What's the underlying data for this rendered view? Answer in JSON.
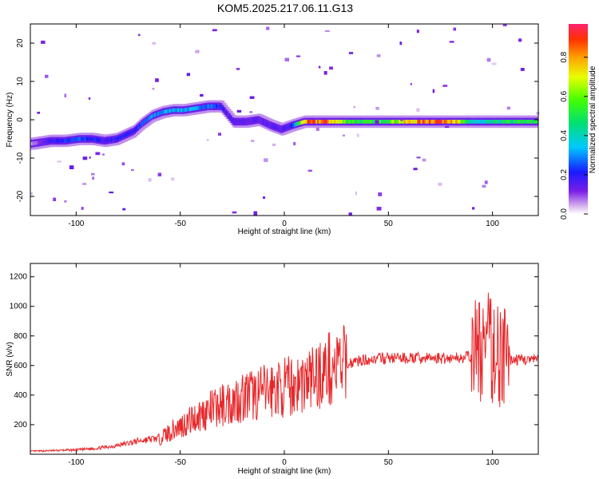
{
  "figure": {
    "title": "KOM5.2025.217.06.11.G13"
  },
  "chart_data": [
    {
      "type": "heatmap",
      "xlabel": "Height of straight line (km)",
      "ylabel": "Frequency (Hz)",
      "xlim": [
        -122,
        122
      ],
      "ylim": [
        -25,
        25
      ],
      "xticks": [
        -100,
        -50,
        0,
        50,
        100
      ],
      "yticks": [
        -20,
        -10,
        0,
        10,
        20
      ],
      "colorbar": {
        "label": "Normalized spectral amplitude",
        "range": [
          0,
          0.97
        ],
        "ticks": [
          0.0,
          0.2,
          0.4,
          0.6,
          0.8
        ]
      },
      "ridge": [
        {
          "x": -118,
          "y": -6,
          "a": 0.1
        },
        {
          "x": -112,
          "y": -5.5,
          "a": 0.18
        },
        {
          "x": -105,
          "y": -5.5,
          "a": 0.22
        },
        {
          "x": -98,
          "y": -5,
          "a": 0.25
        },
        {
          "x": -92,
          "y": -5,
          "a": 0.22
        },
        {
          "x": -86,
          "y": -5.5,
          "a": 0.18
        },
        {
          "x": -80,
          "y": -5,
          "a": 0.2
        },
        {
          "x": -76,
          "y": -4,
          "a": 0.22
        },
        {
          "x": -72,
          "y": -3,
          "a": 0.2
        },
        {
          "x": -68,
          "y": -1,
          "a": 0.25
        },
        {
          "x": -63,
          "y": 1,
          "a": 0.3
        },
        {
          "x": -58,
          "y": 2,
          "a": 0.3
        },
        {
          "x": -53,
          "y": 2.5,
          "a": 0.35
        },
        {
          "x": -48,
          "y": 2.5,
          "a": 0.33
        },
        {
          "x": -42,
          "y": 3,
          "a": 0.3
        },
        {
          "x": -36,
          "y": 3.5,
          "a": 0.3
        },
        {
          "x": -30,
          "y": 3.5,
          "a": 0.2
        },
        {
          "x": -24,
          "y": -0.5,
          "a": 0.15
        },
        {
          "x": -18,
          "y": -0.5,
          "a": 0.15
        },
        {
          "x": -12,
          "y": 0,
          "a": 0.15
        },
        {
          "x": -6,
          "y": -1.5,
          "a": 0.15
        },
        {
          "x": -1,
          "y": -2.5,
          "a": 0.15
        },
        {
          "x": 4,
          "y": -1.5,
          "a": 0.2
        },
        {
          "x": 10,
          "y": -0.5,
          "a": 0.8
        },
        {
          "x": 20,
          "y": -0.5,
          "a": 0.88
        },
        {
          "x": 30,
          "y": -0.5,
          "a": 0.6
        },
        {
          "x": 40,
          "y": -0.5,
          "a": 0.5
        },
        {
          "x": 50,
          "y": -0.5,
          "a": 0.6
        },
        {
          "x": 60,
          "y": -0.5,
          "a": 0.75
        },
        {
          "x": 70,
          "y": -0.5,
          "a": 0.9
        },
        {
          "x": 80,
          "y": -0.5,
          "a": 0.92
        },
        {
          "x": 88,
          "y": -0.5,
          "a": 0.45
        },
        {
          "x": 95,
          "y": -0.5,
          "a": 0.35
        },
        {
          "x": 102,
          "y": -0.5,
          "a": 0.45
        },
        {
          "x": 110,
          "y": -0.5,
          "a": 0.5
        },
        {
          "x": 118,
          "y": -0.5,
          "a": 0.5
        }
      ]
    },
    {
      "type": "line",
      "xlabel": "Height of straight line (km)",
      "ylabel": "SNR (v/v)",
      "xlim": [
        -122,
        122
      ],
      "ylim": [
        0,
        1290
      ],
      "xticks": [
        -100,
        -50,
        0,
        50,
        100
      ],
      "yticks": [
        200,
        400,
        600,
        800,
        1000,
        1200
      ],
      "color": "#e8272a",
      "series": [
        {
          "x": [
            -122,
            -110,
            -100,
            -90,
            -80,
            -70,
            -60,
            -55,
            -50,
            -45,
            -40,
            -35,
            -30,
            -25,
            -20,
            -15,
            -10,
            -5,
            0,
            5,
            10,
            15,
            20,
            25,
            30,
            35,
            40,
            50,
            60,
            70,
            80,
            90,
            92,
            95,
            98,
            100,
            103,
            105,
            107,
            110,
            122
          ],
          "y": [
            20,
            25,
            30,
            40,
            60,
            90,
            110,
            150,
            190,
            230,
            270,
            300,
            330,
            360,
            390,
            400,
            420,
            440,
            450,
            470,
            490,
            530,
            570,
            590,
            610,
            630,
            640,
            650,
            650,
            650,
            650,
            660,
            700,
            720,
            720,
            700,
            690,
            650,
            640,
            640,
            640
          ]
        }
      ]
    }
  ]
}
